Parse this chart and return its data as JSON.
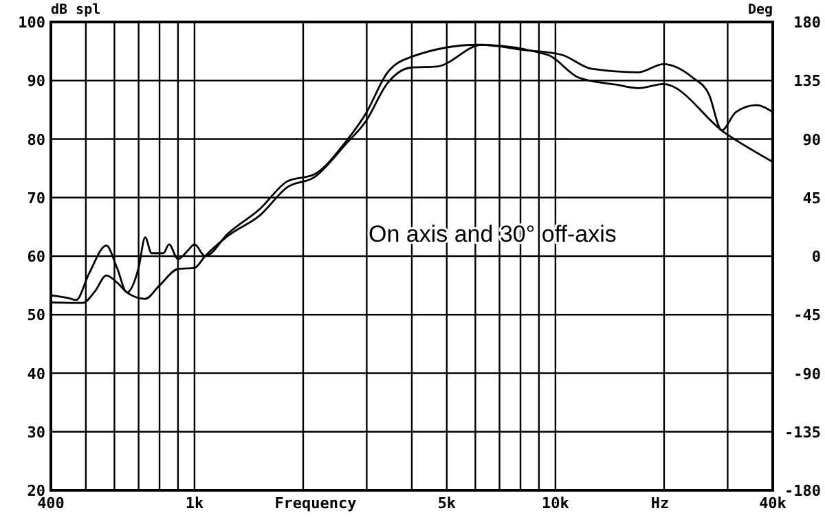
{
  "chart_data": {
    "type": "line",
    "ylabel": "dB spl",
    "y2label": "Deg",
    "xlabel": "Frequency",
    "annotations": [
      "On axis and 30° off-axis",
      "Hz"
    ],
    "log": "x",
    "grid": true,
    "line_style": "solid",
    "xlim": [
      400,
      40000
    ],
    "xticks": [
      {
        "value": 400,
        "label": "400"
      },
      {
        "value": 500,
        "label": null
      },
      {
        "value": 600,
        "label": null
      },
      {
        "value": 700,
        "label": null
      },
      {
        "value": 800,
        "label": null
      },
      {
        "value": 900,
        "label": null
      },
      {
        "value": 1000,
        "label": "1k"
      },
      {
        "value": 2000,
        "label": null
      },
      {
        "value": 3000,
        "label": null
      },
      {
        "value": 4000,
        "label": null
      },
      {
        "value": 5000,
        "label": "5k"
      },
      {
        "value": 6000,
        "label": null
      },
      {
        "value": 7000,
        "label": null
      },
      {
        "value": 8000,
        "label": null
      },
      {
        "value": 9000,
        "label": null
      },
      {
        "value": 10000,
        "label": "10k"
      },
      {
        "value": 20000,
        "label": null
      },
      {
        "value": 30000,
        "label": null
      },
      {
        "value": 40000,
        "label": "40k"
      }
    ],
    "ylim": [
      20,
      100
    ],
    "yticks": [
      20,
      30,
      40,
      50,
      60,
      70,
      80,
      90,
      100
    ],
    "y2lim": [
      -180,
      180
    ],
    "y2ticks": [
      -180,
      -135,
      -90,
      -45,
      0,
      45,
      90,
      135,
      180
    ],
    "series": [
      {
        "color": "#000000",
        "x": [
          400,
          450,
          470,
          510,
          570,
          610,
          650,
          700,
          730,
          760,
          820,
          850,
          900,
          960,
          1000,
          1070,
          1240,
          1520,
          1810,
          2150,
          2630,
          2980,
          3420,
          3970,
          6100,
          9500,
          11600,
          14700,
          17000,
          19900,
          29400,
          40000
        ],
        "values": [
          53.3,
          52.8,
          52.5,
          57,
          61.8,
          58,
          53.8,
          58,
          63.2,
          60.5,
          60.5,
          62,
          59.5,
          61,
          62,
          60,
          63.9,
          68.1,
          72.8,
          74,
          79.6,
          84.3,
          91.3,
          94,
          96.1,
          94.4,
          90.5,
          89.3,
          88.7,
          89.4,
          81.1,
          76.1
        ]
      },
      {
        "color": "#000000",
        "x": [
          400,
          490,
          530,
          570,
          610,
          650,
          730,
          800,
          900,
          1000,
          1070,
          1240,
          1520,
          1810,
          2150,
          2630,
          2980,
          3420,
          3970,
          4700,
          6250,
          8200,
          10400,
          12600,
          17000,
          19900,
          24000,
          26600,
          28900,
          31600,
          36000,
          40000
        ],
        "values": [
          52.1,
          52,
          54,
          56.7,
          55.5,
          53.8,
          52.7,
          55,
          57.8,
          58,
          60,
          63.5,
          67,
          71.8,
          73.5,
          79.2,
          83,
          89.5,
          92.2,
          92.4,
          96.1,
          95.2,
          94.4,
          92,
          91.4,
          92.8,
          90.5,
          87.7,
          81.5,
          84.6,
          85.8,
          84.6
        ]
      }
    ]
  }
}
